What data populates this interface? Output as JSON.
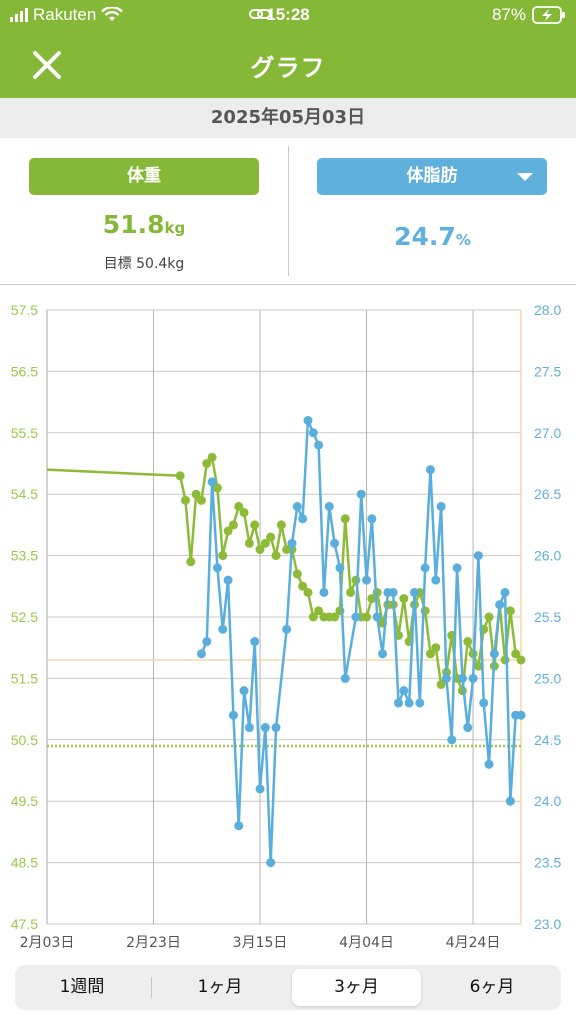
{
  "status": {
    "carrier": "Rakuten",
    "time": "15:28",
    "battery": "87%"
  },
  "header": {
    "title": "グラフ"
  },
  "date": "2025年05月03日",
  "weight": {
    "label": "体重",
    "value": "51.8",
    "unit": "kg",
    "target_label": "目標 50.4kg",
    "color": "#86b838"
  },
  "fat": {
    "label": "体脂肪",
    "value": "24.7",
    "unit": "%",
    "color": "#5fb0dc"
  },
  "tabs": [
    {
      "label": "1週間",
      "active": false
    },
    {
      "label": "1ヶ月",
      "active": false
    },
    {
      "label": "3ヶ月",
      "active": true
    },
    {
      "label": "6ヶ月",
      "active": false
    }
  ],
  "chart_data": {
    "type": "line",
    "x_tick_labels": [
      "2月03日",
      "2月23日",
      "3月15日",
      "4月04日",
      "4月24日"
    ],
    "x_ticks": [
      "2025-02-03",
      "2025-02-23",
      "2025-03-15",
      "2025-04-04",
      "2025-04-24"
    ],
    "xlim": [
      "2025-02-03",
      "2025-05-03"
    ],
    "y_left": {
      "ylim": [
        47.5,
        57.5
      ],
      "ticks": [
        "47.5",
        "48.5",
        "49.5",
        "50.5",
        "51.5",
        "52.5",
        "53.5",
        "54.5",
        "55.5",
        "56.5",
        "57.5"
      ]
    },
    "y_right": {
      "ylim": [
        23.0,
        28.0
      ],
      "ticks": [
        "23.0",
        "23.5",
        "24.0",
        "24.5",
        "25.0",
        "25.5",
        "26.0",
        "26.5",
        "27.0",
        "27.5",
        "28.0"
      ]
    },
    "reference_lines": [
      {
        "axis": "left",
        "value": 51.8,
        "style": "solid",
        "color": "#f5d9a8"
      },
      {
        "axis": "left",
        "value": 50.4,
        "style": "dotted",
        "color": "#9dc84a"
      }
    ],
    "series": [
      {
        "axis": "left",
        "color": "#8dbb38",
        "leading_line_from": [
          "2025-02-03",
          54.9
        ],
        "points": [
          [
            "2025-02-28",
            54.8
          ],
          [
            "2025-03-01",
            54.4
          ],
          [
            "2025-03-02",
            53.4
          ],
          [
            "2025-03-03",
            54.5
          ],
          [
            "2025-03-04",
            54.4
          ],
          [
            "2025-03-05",
            55.0
          ],
          [
            "2025-03-06",
            55.1
          ],
          [
            "2025-03-07",
            54.6
          ],
          [
            "2025-03-08",
            53.5
          ],
          [
            "2025-03-09",
            53.9
          ],
          [
            "2025-03-10",
            54.0
          ],
          [
            "2025-03-11",
            54.3
          ],
          [
            "2025-03-12",
            54.2
          ],
          [
            "2025-03-13",
            53.7
          ],
          [
            "2025-03-14",
            54.0
          ],
          [
            "2025-03-15",
            53.6
          ],
          [
            "2025-03-16",
            53.7
          ],
          [
            "2025-03-17",
            53.8
          ],
          [
            "2025-03-18",
            53.5
          ],
          [
            "2025-03-19",
            54.0
          ],
          [
            "2025-03-20",
            53.6
          ],
          [
            "2025-03-21",
            53.6
          ],
          [
            "2025-03-22",
            53.2
          ],
          [
            "2025-03-23",
            53.0
          ],
          [
            "2025-03-24",
            52.9
          ],
          [
            "2025-03-25",
            52.5
          ],
          [
            "2025-03-26",
            52.6
          ],
          [
            "2025-03-27",
            52.5
          ],
          [
            "2025-03-28",
            52.5
          ],
          [
            "2025-03-29",
            52.5
          ],
          [
            "2025-03-30",
            52.6
          ],
          [
            "2025-03-31",
            54.1
          ],
          [
            "2025-04-01",
            52.9
          ],
          [
            "2025-04-02",
            53.1
          ],
          [
            "2025-04-03",
            52.5
          ],
          [
            "2025-04-04",
            52.5
          ],
          [
            "2025-04-05",
            52.8
          ],
          [
            "2025-04-06",
            52.9
          ],
          [
            "2025-04-07",
            52.4
          ],
          [
            "2025-04-08",
            52.7
          ],
          [
            "2025-04-09",
            52.7
          ],
          [
            "2025-04-10",
            52.2
          ],
          [
            "2025-04-11",
            52.8
          ],
          [
            "2025-04-12",
            52.1
          ],
          [
            "2025-04-13",
            52.7
          ],
          [
            "2025-04-14",
            52.9
          ],
          [
            "2025-04-15",
            52.6
          ],
          [
            "2025-04-16",
            51.9
          ],
          [
            "2025-04-17",
            52.0
          ],
          [
            "2025-04-18",
            51.4
          ],
          [
            "2025-04-19",
            51.6
          ],
          [
            "2025-04-20",
            52.2
          ],
          [
            "2025-04-21",
            51.5
          ],
          [
            "2025-04-22",
            51.3
          ],
          [
            "2025-04-23",
            52.1
          ],
          [
            "2025-04-24",
            51.9
          ],
          [
            "2025-04-25",
            51.7
          ],
          [
            "2025-04-26",
            52.3
          ],
          [
            "2025-04-27",
            52.5
          ],
          [
            "2025-04-28",
            51.7
          ],
          [
            "2025-04-29",
            52.7
          ],
          [
            "2025-04-30",
            51.8
          ],
          [
            "2025-05-01",
            52.6
          ],
          [
            "2025-05-02",
            51.9
          ],
          [
            "2025-05-03",
            51.8
          ]
        ]
      },
      {
        "axis": "right",
        "color": "#5aaedc",
        "points": [
          [
            "2025-03-04",
            25.2
          ],
          [
            "2025-03-05",
            25.3
          ],
          [
            "2025-03-06",
            26.6
          ],
          [
            "2025-03-07",
            25.9
          ],
          [
            "2025-03-08",
            25.4
          ],
          [
            "2025-03-09",
            25.8
          ],
          [
            "2025-03-10",
            24.7
          ],
          [
            "2025-03-11",
            23.8
          ],
          [
            "2025-03-12",
            24.9
          ],
          [
            "2025-03-13",
            24.6
          ],
          [
            "2025-03-14",
            25.3
          ],
          [
            "2025-03-15",
            24.1
          ],
          [
            "2025-03-16",
            24.6
          ],
          [
            "2025-03-17",
            23.5
          ],
          [
            "2025-03-18",
            24.6
          ],
          [
            "2025-03-20",
            25.4
          ],
          [
            "2025-03-21",
            26.1
          ],
          [
            "2025-03-22",
            26.4
          ],
          [
            "2025-03-23",
            26.3
          ],
          [
            "2025-03-24",
            27.1
          ],
          [
            "2025-03-25",
            27.0
          ],
          [
            "2025-03-26",
            26.9
          ],
          [
            "2025-03-27",
            25.7
          ],
          [
            "2025-03-28",
            26.4
          ],
          [
            "2025-03-29",
            26.1
          ],
          [
            "2025-03-30",
            25.9
          ],
          [
            "2025-03-31",
            25.0
          ],
          [
            "2025-04-02",
            25.5
          ],
          [
            "2025-04-03",
            26.5
          ],
          [
            "2025-04-04",
            25.8
          ],
          [
            "2025-04-05",
            26.3
          ],
          [
            "2025-04-06",
            25.5
          ],
          [
            "2025-04-07",
            25.2
          ],
          [
            "2025-04-08",
            25.7
          ],
          [
            "2025-04-09",
            25.7
          ],
          [
            "2025-04-10",
            24.8
          ],
          [
            "2025-04-11",
            24.9
          ],
          [
            "2025-04-12",
            24.8
          ],
          [
            "2025-04-13",
            25.7
          ],
          [
            "2025-04-14",
            24.8
          ],
          [
            "2025-04-15",
            25.9
          ],
          [
            "2025-04-16",
            26.7
          ],
          [
            "2025-04-17",
            25.8
          ],
          [
            "2025-04-18",
            26.4
          ],
          [
            "2025-04-19",
            25.0
          ],
          [
            "2025-04-20",
            24.5
          ],
          [
            "2025-04-21",
            25.9
          ],
          [
            "2025-04-22",
            25.0
          ],
          [
            "2025-04-23",
            24.6
          ],
          [
            "2025-04-24",
            25.0
          ],
          [
            "2025-04-25",
            26.0
          ],
          [
            "2025-04-26",
            24.8
          ],
          [
            "2025-04-27",
            24.3
          ],
          [
            "2025-04-28",
            25.2
          ],
          [
            "2025-04-29",
            25.6
          ],
          [
            "2025-04-30",
            25.7
          ],
          [
            "2025-05-01",
            24.0
          ],
          [
            "2025-05-02",
            24.7
          ],
          [
            "2025-05-03",
            24.7
          ]
        ]
      }
    ]
  }
}
